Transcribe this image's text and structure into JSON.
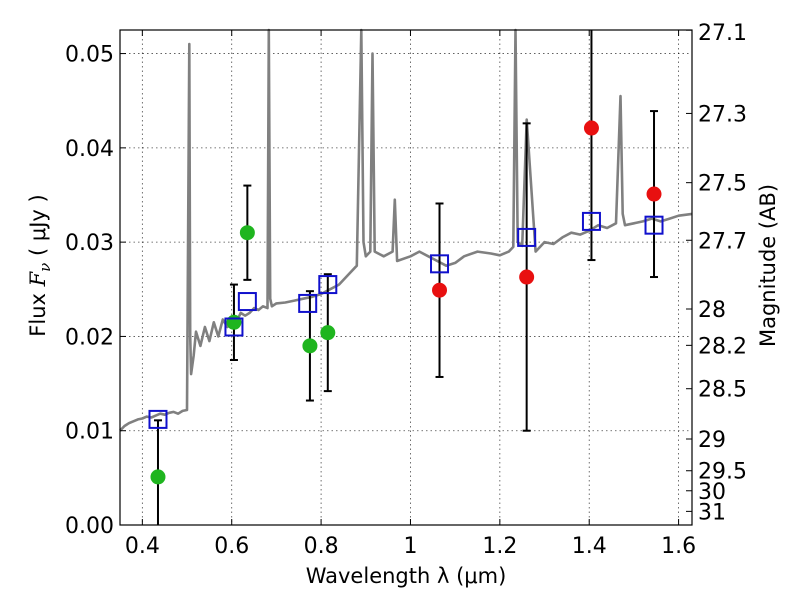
{
  "chart_data": {
    "type": "scatter",
    "title": "",
    "xlabel": "Wavelength  λ (μm)",
    "ylabel": "Flux  F_ν  ( μJy )",
    "ylabel_prefix": "Flux  ",
    "ylabel_symbol": "F",
    "ylabel_symbol_sub": "ν",
    "ylabel_suffix": "  ( μJy )",
    "y2label": "Magnitude (AB)",
    "xlim": [
      0.35,
      1.63
    ],
    "ylim": [
      0.0,
      0.0525
    ],
    "grid": true,
    "x_ticks": [
      0.4,
      0.6,
      0.8,
      1.0,
      1.2,
      1.4,
      1.6
    ],
    "x_tick_labels": [
      "0.4",
      "0.6",
      "0.8",
      "1",
      "1.2",
      "1.4",
      "1.6"
    ],
    "y_ticks": [
      0.0,
      0.01,
      0.02,
      0.03,
      0.04,
      0.05
    ],
    "y_tick_labels": [
      "0.00",
      "0.01",
      "0.02",
      "0.03",
      "0.04",
      "0.05"
    ],
    "y2_tick_labels": [
      "27.1",
      "27.3",
      "27.5",
      "27.7",
      "28",
      "28.2",
      "28.5",
      "29",
      "29.5",
      "30",
      "31"
    ],
    "y2_tick_values": [
      27.1,
      27.3,
      27.5,
      27.7,
      28.0,
      28.2,
      28.5,
      29.0,
      29.5,
      30.0,
      31.0
    ],
    "colors": {
      "model": "#808080",
      "green": "#1fb51f",
      "red": "#e81010",
      "blue": "#1010cc",
      "errorbar": "#000000"
    },
    "series": [
      {
        "name": "model spectrum",
        "kind": "line",
        "x": [
          0.35,
          0.36,
          0.37,
          0.38,
          0.39,
          0.4,
          0.41,
          0.42,
          0.43,
          0.44,
          0.45,
          0.46,
          0.47,
          0.48,
          0.49,
          0.5,
          0.505,
          0.507,
          0.509,
          0.515,
          0.52,
          0.53,
          0.54,
          0.55,
          0.56,
          0.57,
          0.58,
          0.59,
          0.6,
          0.61,
          0.62,
          0.63,
          0.64,
          0.65,
          0.66,
          0.67,
          0.68,
          0.683,
          0.686,
          0.69,
          0.7,
          0.72,
          0.74,
          0.76,
          0.78,
          0.8,
          0.82,
          0.84,
          0.86,
          0.88,
          0.89,
          0.895,
          0.9,
          0.91,
          0.915,
          0.92,
          0.94,
          0.96,
          0.965,
          0.97,
          1.0,
          1.02,
          1.04,
          1.06,
          1.08,
          1.1,
          1.12,
          1.15,
          1.18,
          1.2,
          1.22,
          1.23,
          1.235,
          1.24,
          1.25,
          1.26,
          1.28,
          1.3,
          1.32,
          1.34,
          1.36,
          1.38,
          1.4,
          1.42,
          1.44,
          1.46,
          1.47,
          1.475,
          1.48,
          1.5,
          1.52,
          1.54,
          1.56,
          1.58,
          1.6,
          1.63
        ],
        "y": [
          0.01,
          0.0105,
          0.0108,
          0.011,
          0.0112,
          0.0113,
          0.0115,
          0.0114,
          0.0116,
          0.0118,
          0.0117,
          0.0119,
          0.012,
          0.0118,
          0.0121,
          0.0122,
          0.051,
          0.02,
          0.016,
          0.018,
          0.0205,
          0.019,
          0.021,
          0.0195,
          0.0215,
          0.02,
          0.0218,
          0.021,
          0.022,
          0.0215,
          0.0225,
          0.0222,
          0.0225,
          0.023,
          0.0228,
          0.0232,
          0.023,
          0.0525,
          0.024,
          0.0232,
          0.0235,
          0.0236,
          0.0238,
          0.024,
          0.0242,
          0.0245,
          0.025,
          0.0255,
          0.0265,
          0.0275,
          0.0525,
          0.03,
          0.0285,
          0.029,
          0.05,
          0.029,
          0.0285,
          0.029,
          0.0345,
          0.028,
          0.0285,
          0.029,
          0.0285,
          0.028,
          0.0275,
          0.0278,
          0.0285,
          0.029,
          0.0288,
          0.0286,
          0.029,
          0.0295,
          0.0525,
          0.03,
          0.0296,
          0.043,
          0.029,
          0.03,
          0.0298,
          0.0305,
          0.031,
          0.0308,
          0.0312,
          0.0318,
          0.0315,
          0.032,
          0.0455,
          0.033,
          0.0318,
          0.032,
          0.0322,
          0.0325,
          0.0322,
          0.0325,
          0.0328,
          0.033
        ]
      },
      {
        "name": "green points",
        "kind": "points",
        "marker": "circle",
        "x": [
          0.435,
          0.605,
          0.635,
          0.775,
          0.815
        ],
        "y": [
          0.0051,
          0.0215,
          0.031,
          0.019,
          0.0204
        ],
        "yerr": [
          0.006,
          0.004,
          0.005,
          0.0058,
          0.0062
        ]
      },
      {
        "name": "red points",
        "kind": "points",
        "marker": "circle",
        "x": [
          1.065,
          1.26,
          1.405,
          1.545
        ],
        "y": [
          0.0249,
          0.0263,
          0.0421,
          0.0351
        ],
        "yerr": [
          0.0092,
          0.0163,
          0.014,
          0.0088
        ]
      },
      {
        "name": "model photometry",
        "kind": "points",
        "marker": "square-open",
        "x": [
          0.435,
          0.605,
          0.635,
          0.77,
          0.815,
          1.065,
          1.26,
          1.405,
          1.545
        ],
        "y": [
          0.0112,
          0.021,
          0.0237,
          0.0235,
          0.0255,
          0.0277,
          0.0305,
          0.0322,
          0.0318
        ]
      }
    ]
  }
}
